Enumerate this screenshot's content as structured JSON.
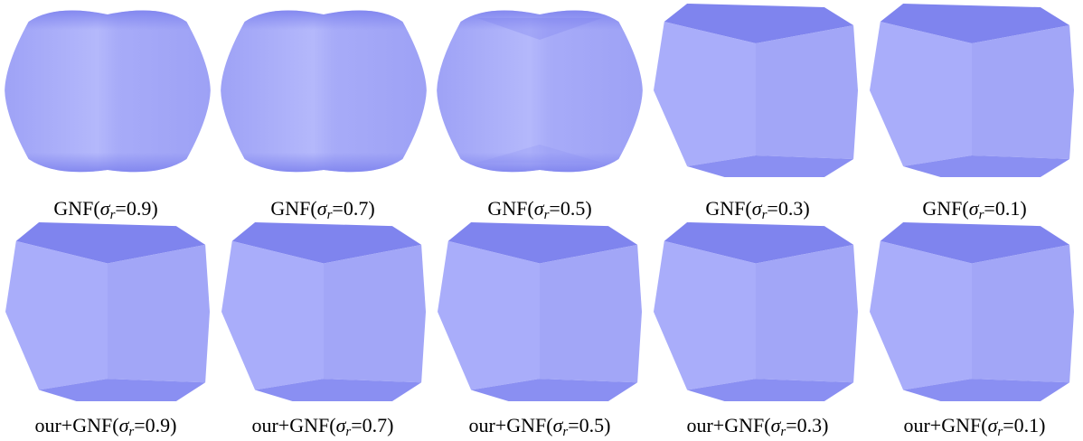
{
  "colors": {
    "face_light": "#a9adfa",
    "face_mid": "#a2a6f7",
    "face_dark": "#8a8ff2",
    "face_darker": "#7f84ee"
  },
  "rows": [
    {
      "kind": "smooth-to-sharp",
      "panels": [
        {
          "prefix": "GNF(",
          "sigma": "σ",
          "sub": "r",
          "value": "=0.9)",
          "shape": "rounded",
          "round": 1.0
        },
        {
          "prefix": "GNF(",
          "sigma": "σ",
          "sub": "r",
          "value": "=0.7)",
          "shape": "rounded",
          "round": 0.9
        },
        {
          "prefix": "GNF(",
          "sigma": "σ",
          "sub": "r",
          "value": "=0.5)",
          "shape": "rounded",
          "round": 0.6
        },
        {
          "prefix": "GNF(",
          "sigma": "σ",
          "sub": "r",
          "value": "=0.3)",
          "shape": "sharp",
          "round": 0
        },
        {
          "prefix": "GNF(",
          "sigma": "σ",
          "sub": "r",
          "value": "=0.1)",
          "shape": "sharp",
          "round": 0
        }
      ]
    },
    {
      "kind": "sharp",
      "panels": [
        {
          "prefix": "our+GNF(",
          "sigma": "σ",
          "sub": "r",
          "value": "=0.9)",
          "shape": "sharp",
          "round": 0
        },
        {
          "prefix": "our+GNF(",
          "sigma": "σ",
          "sub": "r",
          "value": "=0.7)",
          "shape": "sharp",
          "round": 0
        },
        {
          "prefix": "our+GNF(",
          "sigma": "σ",
          "sub": "r",
          "value": "=0.5)",
          "shape": "sharp",
          "round": 0
        },
        {
          "prefix": "our+GNF(",
          "sigma": "σ",
          "sub": "r",
          "value": "=0.3)",
          "shape": "sharp",
          "round": 0
        },
        {
          "prefix": "our+GNF(",
          "sigma": "σ",
          "sub": "r",
          "value": "=0.1)",
          "shape": "sharp",
          "round": 0
        }
      ]
    }
  ]
}
